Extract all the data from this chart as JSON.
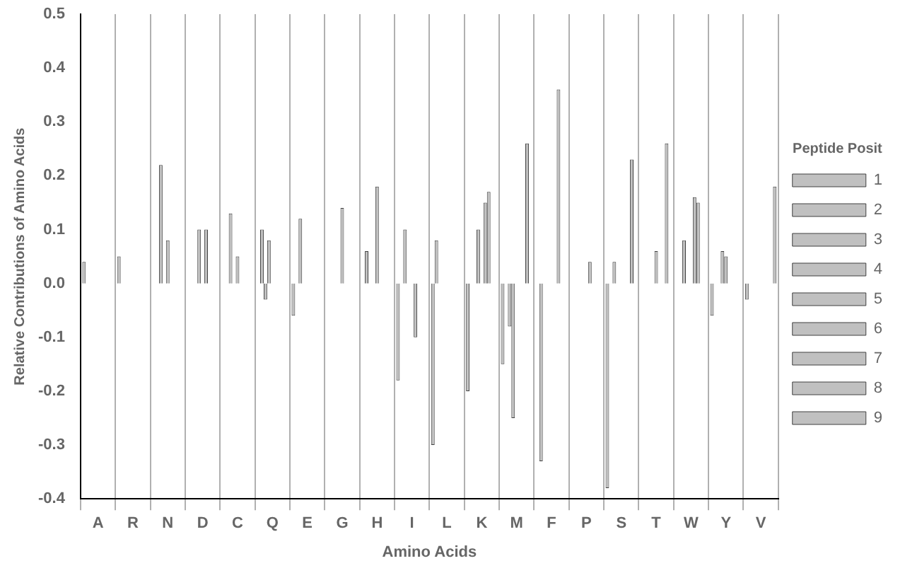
{
  "chart_data": {
    "type": "bar",
    "xlabel": "Amino Acids",
    "ylabel": "Relative Contributions of Amino Acids",
    "legend_title": "Peptide Posit",
    "legend": "right",
    "grid": "x",
    "categories": [
      "A",
      "R",
      "N",
      "D",
      "C",
      "Q",
      "E",
      "G",
      "H",
      "I",
      "L",
      "K",
      "M",
      "F",
      "P",
      "S",
      "T",
      "W",
      "Y",
      "V"
    ],
    "ylim": [
      -0.4,
      0.5
    ],
    "yticks": [
      -0.4,
      -0.3,
      -0.2,
      -0.1,
      {
        "value": 0,
        "label": "0.0"
      },
      0.1,
      0.2,
      0.3,
      0.4,
      0.5
    ],
    "series": [
      {
        "name": "1",
        "color": "#c0c0c0",
        "values": [
          0.04,
          0.05,
          0,
          0,
          0,
          0,
          -0.06,
          0,
          0,
          -0.18,
          -0.3,
          -0.2,
          -0.15,
          0,
          0,
          -0.38,
          0,
          0,
          -0.06,
          -0.03
        ]
      },
      {
        "name": "2",
        "color": "#c0c0c0",
        "values": [
          0,
          0,
          0,
          0,
          0,
          0.1,
          0,
          0,
          0.06,
          0,
          0.08,
          0,
          0,
          -0.33,
          0,
          0,
          0,
          0,
          0,
          0
        ]
      },
      {
        "name": "3",
        "color": "#c0c0c0",
        "values": [
          0,
          0,
          0.22,
          0,
          0.13,
          -0.03,
          0.12,
          0,
          0,
          0.1,
          0,
          0,
          -0.08,
          0,
          0,
          0.04,
          0,
          0.08,
          0,
          0
        ]
      },
      {
        "name": "4",
        "color": "#c0c0c0",
        "values": [
          0,
          0,
          0,
          0.1,
          0,
          0.08,
          0,
          0,
          0,
          0,
          0,
          0.1,
          -0.25,
          0,
          0,
          0,
          0,
          0,
          0.06,
          0
        ]
      },
      {
        "name": "5",
        "color": "#c0c0c0",
        "values": [
          0,
          0,
          0.08,
          0,
          0.05,
          0,
          0,
          0.14,
          0.18,
          0,
          0,
          0,
          0,
          0,
          0,
          0,
          0.06,
          0,
          0.05,
          0
        ]
      },
      {
        "name": "6",
        "color": "#c0c0c0",
        "values": [
          0,
          0,
          0,
          0.1,
          0,
          0,
          0,
          0,
          0,
          -0.1,
          0,
          0.15,
          0,
          0,
          0.04,
          0,
          0,
          0.16,
          0,
          0
        ]
      },
      {
        "name": "7",
        "color": "#c0c0c0",
        "values": [
          0,
          0,
          0,
          0,
          0,
          0,
          0,
          0,
          0,
          0,
          0,
          0.17,
          0,
          0.36,
          0,
          0,
          0,
          0.15,
          0,
          0
        ]
      },
      {
        "name": "8",
        "color": "#c0c0c0",
        "values": [
          0,
          0,
          0,
          0,
          0,
          0,
          0,
          0,
          0,
          0,
          0,
          0,
          0.26,
          0,
          0,
          0.23,
          0.26,
          0,
          0,
          0
        ]
      },
      {
        "name": "9",
        "color": "#c0c0c0",
        "values": [
          0,
          0,
          0,
          0,
          0,
          0,
          0,
          0,
          0,
          0,
          0,
          0,
          0,
          0,
          0,
          0,
          0,
          0,
          0,
          0.18
        ]
      }
    ]
  }
}
